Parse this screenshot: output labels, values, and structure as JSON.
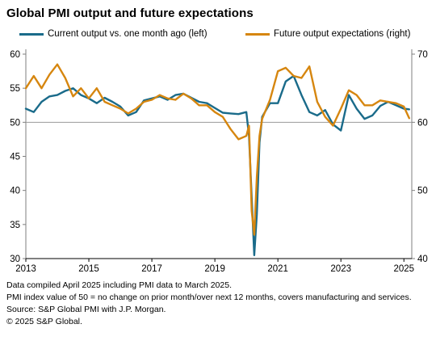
{
  "title": "Global PMI output and future expectations",
  "notes": [
    "Data compiled April 2025 including PMI data to March 2025.",
    "PMI index value of 50 = no change on prior month/over next 12 months, covers manufacturing and services.",
    "Source: S&P Global PMI with J.P. Morgan.",
    "© 2025 S&P Global."
  ],
  "chart_data": {
    "type": "line",
    "title": "Global PMI output and future expectations",
    "xlabel": "",
    "ylabel": "",
    "x_ticks": [
      "2013",
      "2015",
      "2017",
      "2019",
      "2021",
      "2023",
      "2025"
    ],
    "x_range": [
      2013.0,
      2025.25
    ],
    "left_axis": {
      "ticks": [
        30,
        35,
        40,
        45,
        50,
        55,
        60
      ],
      "ylim": [
        30,
        60
      ]
    },
    "right_axis": {
      "ticks": [
        40,
        50,
        60,
        70
      ],
      "ylim": [
        40,
        70
      ]
    },
    "reference_line": 50,
    "grid": false,
    "legend_position": "top",
    "series": [
      {
        "name": "Current output vs. one month ago (left)",
        "axis": "left",
        "color": "#1a6b8a",
        "x": [
          2013.0,
          2013.25,
          2013.5,
          2013.75,
          2014.0,
          2014.25,
          2014.5,
          2014.75,
          2015.0,
          2015.25,
          2015.5,
          2015.75,
          2016.0,
          2016.25,
          2016.5,
          2016.75,
          2017.0,
          2017.25,
          2017.5,
          2017.75,
          2018.0,
          2018.25,
          2018.5,
          2018.75,
          2019.0,
          2019.25,
          2019.5,
          2019.75,
          2020.0,
          2020.083,
          2020.167,
          2020.25,
          2020.333,
          2020.417,
          2020.5,
          2020.75,
          2021.0,
          2021.25,
          2021.5,
          2021.75,
          2022.0,
          2022.25,
          2022.5,
          2022.75,
          2023.0,
          2023.25,
          2023.5,
          2023.75,
          2024.0,
          2024.25,
          2024.5,
          2024.75,
          2025.0,
          2025.167
        ],
        "values": [
          52.0,
          51.5,
          53.0,
          53.8,
          54.0,
          54.6,
          55.0,
          54.0,
          53.5,
          52.8,
          53.6,
          53.0,
          52.3,
          51.0,
          51.5,
          53.2,
          53.5,
          53.8,
          53.3,
          54.0,
          54.2,
          53.6,
          53.0,
          52.8,
          52.1,
          51.4,
          51.3,
          51.2,
          51.5,
          48.0,
          39.0,
          30.5,
          36.5,
          47.0,
          50.8,
          52.8,
          52.8,
          56.0,
          56.8,
          54.0,
          51.5,
          51.0,
          51.8,
          49.7,
          48.8,
          54.0,
          52.0,
          50.5,
          51.0,
          52.4,
          53.0,
          52.5,
          52.0,
          51.9
        ]
      },
      {
        "name": "Future output expectations (right)",
        "axis": "right",
        "color": "#d6860f",
        "x": [
          2013.0,
          2013.25,
          2013.5,
          2013.75,
          2014.0,
          2014.25,
          2014.5,
          2014.75,
          2015.0,
          2015.25,
          2015.5,
          2015.75,
          2016.0,
          2016.25,
          2016.5,
          2016.75,
          2017.0,
          2017.25,
          2017.5,
          2017.75,
          2018.0,
          2018.25,
          2018.5,
          2018.75,
          2019.0,
          2019.25,
          2019.5,
          2019.75,
          2020.0,
          2020.083,
          2020.167,
          2020.25,
          2020.333,
          2020.417,
          2020.5,
          2020.75,
          2021.0,
          2021.25,
          2021.5,
          2021.75,
          2022.0,
          2022.25,
          2022.5,
          2022.75,
          2023.0,
          2023.25,
          2023.5,
          2023.75,
          2024.0,
          2024.25,
          2024.5,
          2024.75,
          2025.0,
          2025.167
        ],
        "values": [
          65.0,
          66.8,
          65.0,
          67.0,
          68.5,
          66.5,
          63.8,
          65.0,
          63.5,
          65.0,
          63.0,
          62.5,
          62.0,
          61.3,
          62.0,
          63.0,
          63.3,
          64.0,
          63.5,
          63.3,
          64.2,
          63.5,
          62.5,
          62.5,
          61.5,
          60.8,
          59.0,
          57.5,
          58.0,
          59.5,
          47.0,
          43.5,
          52.0,
          58.0,
          60.5,
          63.3,
          67.5,
          68.0,
          66.8,
          66.5,
          68.2,
          63.0,
          60.8,
          59.5,
          62.0,
          64.7,
          64.0,
          62.5,
          62.5,
          63.2,
          63.0,
          62.8,
          62.3,
          60.6
        ]
      }
    ]
  }
}
